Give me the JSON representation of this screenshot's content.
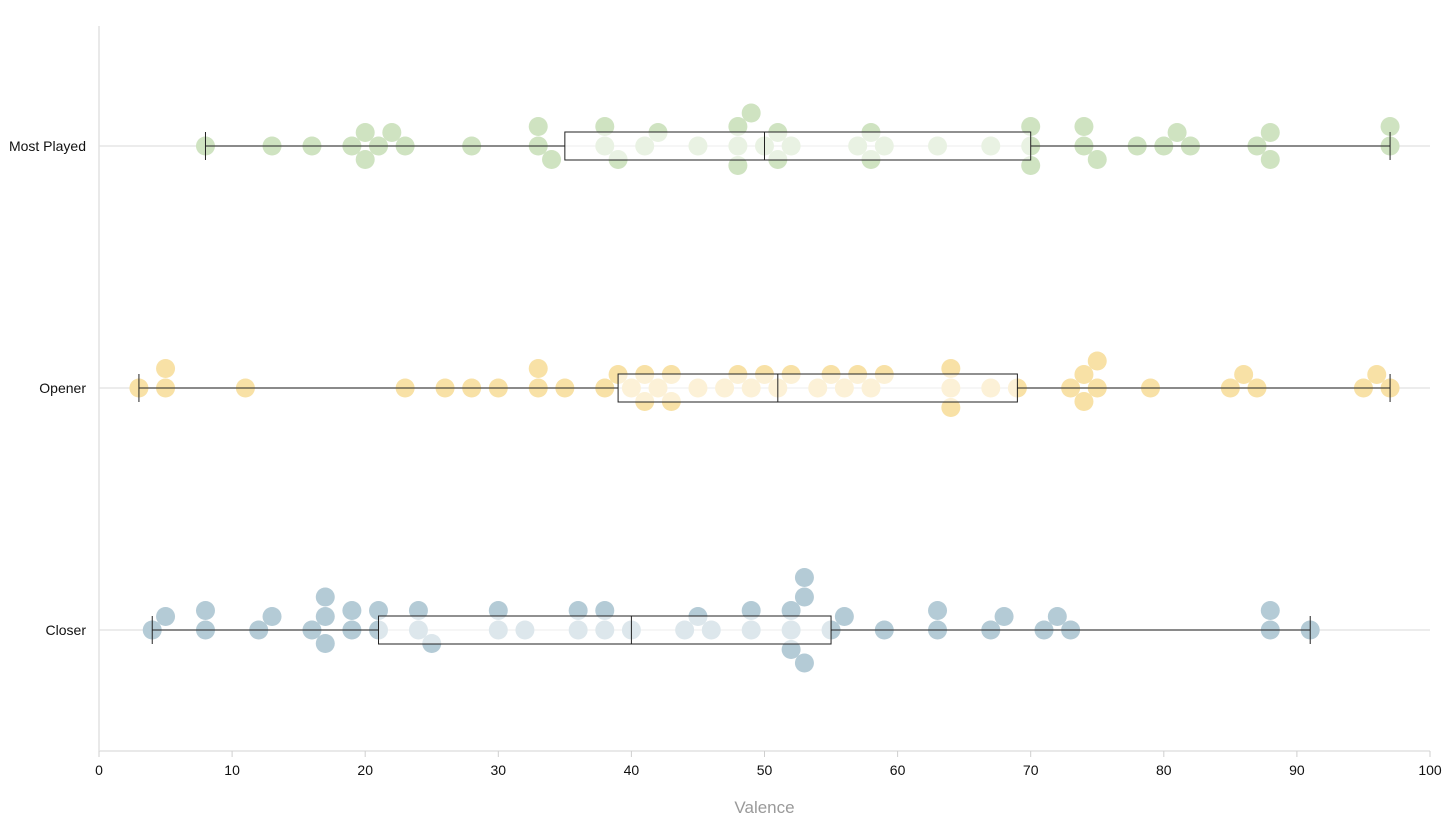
{
  "chart_data": {
    "type": "scatter",
    "subtype": "beeswarm-boxplot",
    "title": "",
    "xlabel": "Valence",
    "ylabel": "",
    "xlim": [
      0,
      100
    ],
    "xticks": [
      0,
      10,
      20,
      30,
      40,
      50,
      60,
      70,
      80,
      90,
      100
    ],
    "grid": "horizontal category lines",
    "categories": [
      "Most Played",
      "Opener",
      "Closer"
    ],
    "series": [
      {
        "name": "Most Played",
        "color": "#cfe3c1",
        "box": {
          "min": 8,
          "q1": 35,
          "median": 50,
          "q3": 70,
          "max": 97
        },
        "points": [
          8,
          13,
          16,
          19,
          20,
          20,
          21,
          22,
          23,
          28,
          33,
          33,
          34,
          38,
          38,
          39,
          41,
          42,
          45,
          48,
          48,
          48,
          49,
          50,
          51,
          51,
          52,
          57,
          58,
          58,
          59,
          63,
          67,
          70,
          70,
          70,
          74,
          74,
          75,
          78,
          80,
          81,
          82,
          87,
          88,
          88,
          97,
          97
        ]
      },
      {
        "name": "Opener",
        "color": "#f8e1a6",
        "box": {
          "min": 3,
          "q1": 39,
          "median": 51,
          "q3": 69,
          "max": 97
        },
        "points": [
          3,
          5,
          5,
          11,
          23,
          26,
          28,
          30,
          33,
          33,
          35,
          38,
          39,
          40,
          41,
          41,
          42,
          43,
          43,
          45,
          47,
          48,
          49,
          50,
          51,
          52,
          54,
          55,
          56,
          57,
          58,
          59,
          64,
          64,
          64,
          67,
          69,
          73,
          74,
          74,
          75,
          75,
          79,
          85,
          86,
          87,
          95,
          96,
          97
        ]
      },
      {
        "name": "Closer",
        "color": "#b4cbd6",
        "box": {
          "min": 4,
          "q1": 21,
          "median": 40,
          "q3": 55,
          "max": 91
        },
        "points": [
          4,
          5,
          8,
          8,
          12,
          13,
          16,
          17,
          17,
          17,
          19,
          19,
          21,
          21,
          24,
          24,
          25,
          30,
          30,
          32,
          36,
          36,
          38,
          38,
          40,
          44,
          45,
          46,
          49,
          49,
          52,
          52,
          52,
          53,
          53,
          53,
          55,
          56,
          59,
          63,
          63,
          67,
          68,
          71,
          72,
          73,
          88,
          88,
          91
        ]
      }
    ]
  }
}
